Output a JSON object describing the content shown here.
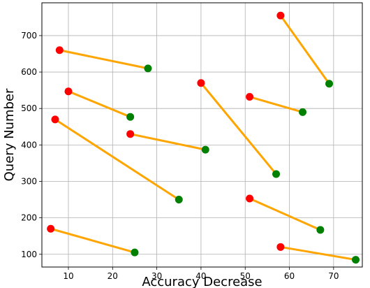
{
  "chart_data": {
    "type": "scatter",
    "title": "",
    "xlabel": "Accuracy Decrease",
    "ylabel": "Query Number",
    "xlim": [
      4,
      76.5
    ],
    "ylim": [
      65,
      790
    ],
    "xticks": [
      10,
      20,
      30,
      40,
      50,
      60,
      70
    ],
    "yticks": [
      100,
      200,
      300,
      400,
      500,
      600,
      700
    ],
    "grid": true,
    "colors": {
      "start_point": "#ff0000",
      "end_point": "#008000",
      "connector": "#ffa500",
      "grid": "#b0b0b0"
    },
    "pairs": [
      {
        "start": [
          8,
          660
        ],
        "end": [
          28,
          610
        ]
      },
      {
        "start": [
          10,
          547
        ],
        "end": [
          24,
          477
        ]
      },
      {
        "start": [
          7,
          470
        ],
        "end": [
          35,
          250
        ]
      },
      {
        "start": [
          6,
          170
        ],
        "end": [
          25,
          105
        ]
      },
      {
        "start": [
          24,
          430
        ],
        "end": [
          41,
          387
        ]
      },
      {
        "start": [
          40,
          570
        ],
        "end": [
          57,
          320
        ]
      },
      {
        "start": [
          51,
          532
        ],
        "end": [
          63,
          490
        ]
      },
      {
        "start": [
          51,
          253
        ],
        "end": [
          67,
          167
        ]
      },
      {
        "start": [
          58,
          755
        ],
        "end": [
          69,
          568
        ]
      },
      {
        "start": [
          58,
          120
        ],
        "end": [
          75,
          85
        ]
      }
    ]
  }
}
